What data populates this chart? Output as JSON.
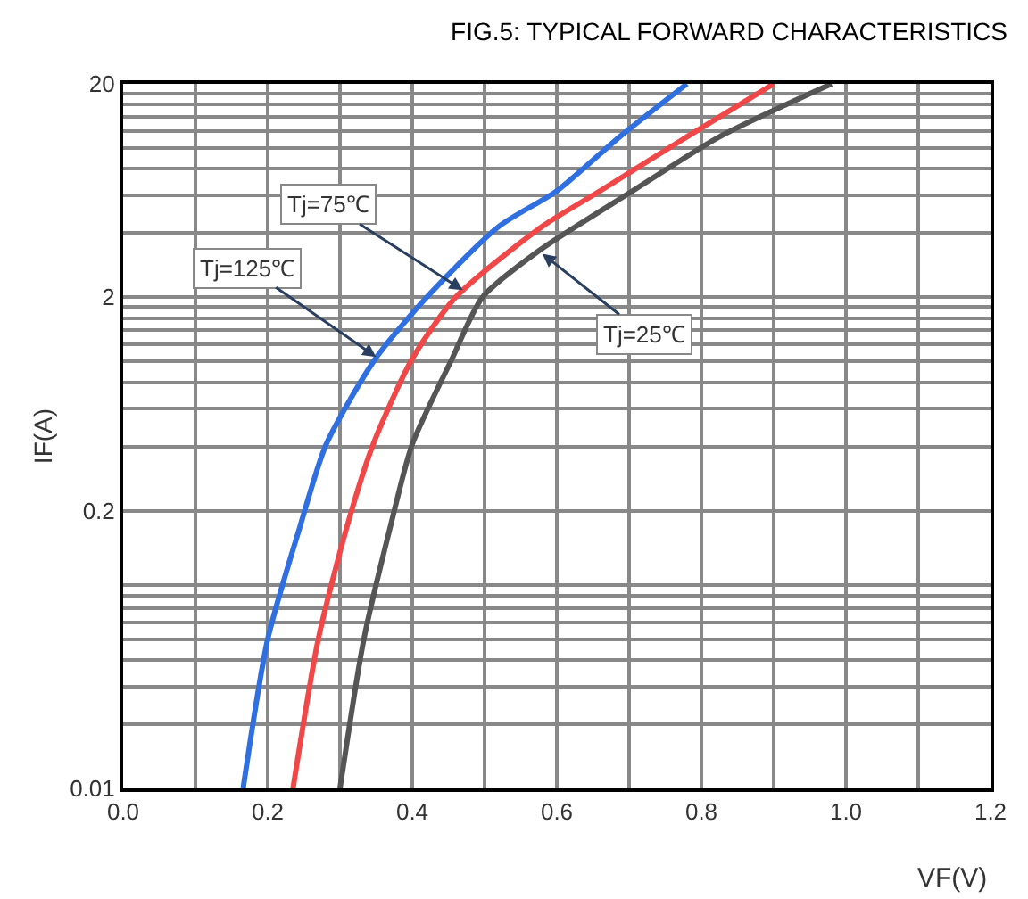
{
  "chart_data": {
    "type": "line",
    "title": "FIG.5: TYPICAL FORWARD CHARACTERISTICS",
    "xlabel": "VF(V)",
    "ylabel": "IF(A)",
    "series": [
      {
        "color": "#2f6fe0",
        "x": [
          0.166,
          0.2,
          0.245,
          0.281,
          0.349,
          0.42,
          0.52,
          0.6,
          0.687,
          0.78
        ],
        "values": [
          0.01,
          0.05,
          0.17,
          0.41,
          1.03,
          2.0,
          4.3,
          6.3,
          11.3,
          20
        ]
      },
      {
        "color": "#f04848",
        "x": [
          0.235,
          0.27,
          0.31,
          0.346,
          0.4,
          0.46,
          0.58,
          0.66,
          0.78,
          0.9
        ],
        "values": [
          0.01,
          0.05,
          0.17,
          0.41,
          1.03,
          2.0,
          4.3,
          6.3,
          11.3,
          20
        ]
      },
      {
        "color": "#555555",
        "x": [
          0.3,
          0.333,
          0.37,
          0.4,
          0.455,
          0.497,
          0.575,
          0.705,
          0.825,
          0.98
        ],
        "values": [
          0.01,
          0.05,
          0.17,
          0.41,
          1.03,
          2.0,
          3.3,
          6.3,
          11.3,
          20
        ]
      }
    ],
    "annotations": [
      {
        "text": "Tj=75℃",
        "x": 0.47,
        "y": 2.16
      },
      {
        "text": "Tj=125℃",
        "x": 0.35,
        "y": 1.05
      },
      {
        "text": "Tj=25℃",
        "x": 0.58,
        "y": 3.2
      }
    ],
    "xlim": [
      0,
      1.2
    ],
    "xticks": [
      {
        "value": 0,
        "label": "0.0"
      },
      0.2,
      0.4,
      0.6,
      0.8,
      {
        "value": 1,
        "label": "1.0"
      },
      1.2
    ],
    "ylim": [
      0.01,
      20
    ],
    "yticks": [
      0.01,
      0.2,
      2,
      20
    ],
    "log": "y",
    "grid": true,
    "marker": "none",
    "line_style": "solid"
  }
}
